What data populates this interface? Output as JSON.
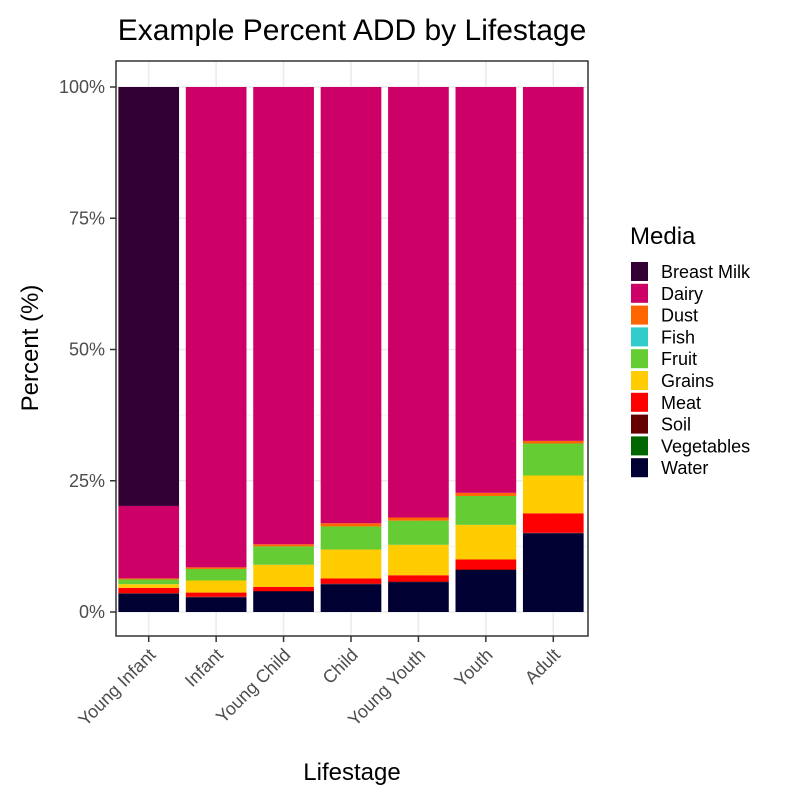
{
  "chart_data": {
    "type": "bar",
    "stacked": true,
    "title": "Example Percent ADD by Lifestage",
    "xlabel": "Lifestage",
    "ylabel": "Percent (%)",
    "ylim": [
      0,
      100
    ],
    "yticks": [
      0,
      25,
      50,
      75,
      100
    ],
    "ytick_labels": [
      "0%",
      "25%",
      "50%",
      "75%",
      "100%"
    ],
    "grid": true,
    "legend": {
      "title": "Media",
      "position": "right"
    },
    "categories": [
      "Young Infant",
      "Infant",
      "Young Child",
      "Child",
      "Young Youth",
      "Youth",
      "Adult"
    ],
    "series": [
      {
        "name": "Water",
        "color": "#000033",
        "values": [
          3.5,
          2.8,
          3.9,
          5.3,
          5.7,
          8.0,
          15.0
        ]
      },
      {
        "name": "Vegetables",
        "color": "#006600",
        "values": [
          0.0,
          0.0,
          0.0,
          0.0,
          0.0,
          0.0,
          0.0
        ]
      },
      {
        "name": "Soil",
        "color": "#660000",
        "values": [
          0.1,
          0.1,
          0.1,
          0.1,
          0.1,
          0.1,
          0.1
        ]
      },
      {
        "name": "Meat",
        "color": "#ff0000",
        "values": [
          1.0,
          0.8,
          0.8,
          1.0,
          1.2,
          1.9,
          3.7
        ]
      },
      {
        "name": "Grains",
        "color": "#ffcc00",
        "values": [
          0.7,
          2.3,
          4.2,
          5.5,
          5.8,
          6.6,
          7.2
        ]
      },
      {
        "name": "Fruit",
        "color": "#66cc33",
        "values": [
          0.9,
          2.2,
          3.5,
          4.4,
          4.6,
          5.5,
          6.1
        ]
      },
      {
        "name": "Fish",
        "color": "#33cccc",
        "values": [
          0.0,
          0.0,
          0.0,
          0.0,
          0.0,
          0.0,
          0.0
        ]
      },
      {
        "name": "Dust",
        "color": "#ff6600",
        "values": [
          0.2,
          0.3,
          0.4,
          0.6,
          0.6,
          0.6,
          0.5
        ]
      },
      {
        "name": "Dairy",
        "color": "#cc0066",
        "values": [
          13.8,
          91.5,
          87.1,
          83.1,
          82.0,
          77.3,
          67.4
        ]
      },
      {
        "name": "Breast Milk",
        "color": "#330033",
        "values": [
          79.8,
          0.0,
          0.0,
          0.0,
          0.0,
          0.0,
          0.0
        ]
      }
    ],
    "legend_order": [
      "Breast Milk",
      "Dairy",
      "Dust",
      "Fish",
      "Fruit",
      "Grains",
      "Meat",
      "Soil",
      "Vegetables",
      "Water"
    ]
  }
}
